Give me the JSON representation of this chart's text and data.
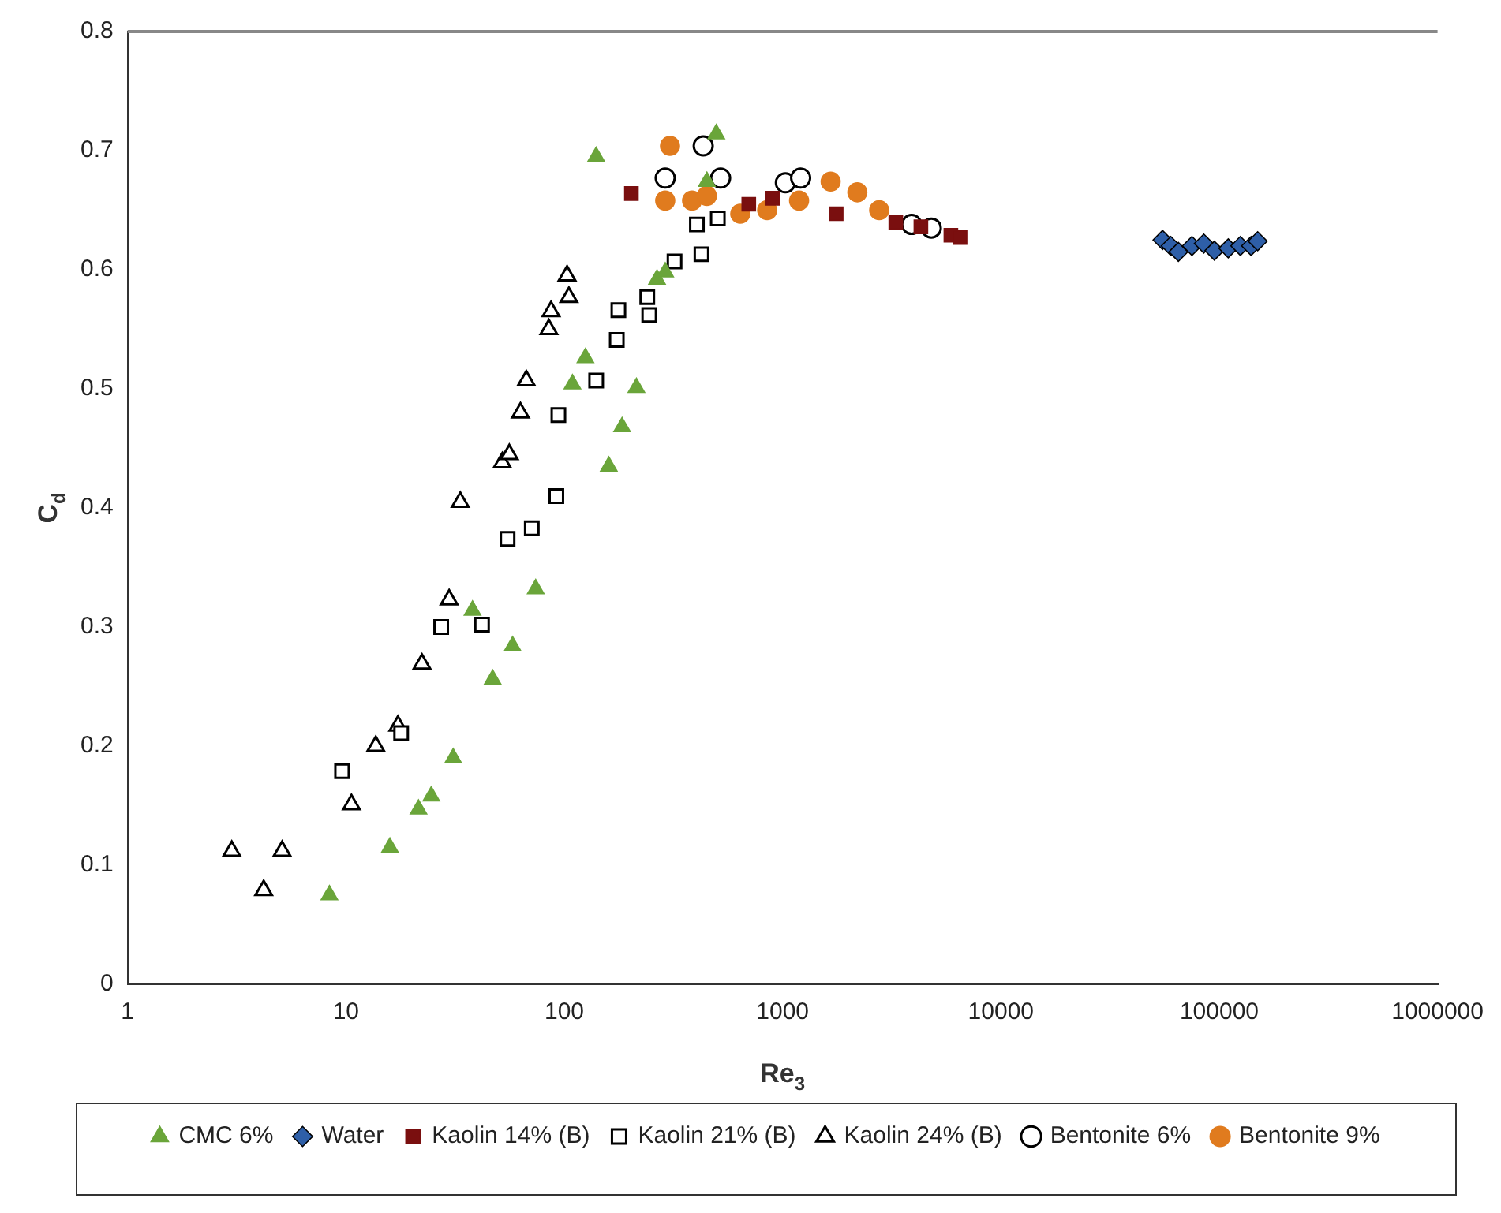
{
  "chart_data": {
    "type": "scatter",
    "xlabel": "Re$_{3}$",
    "ylabel": "C$_{d}$",
    "log": "x",
    "xlim": [
      1,
      1000000
    ],
    "xticks": [
      1,
      10,
      100,
      1000,
      10000,
      100000,
      1000000
    ],
    "ylim": [
      0,
      0.8
    ],
    "yticks": [
      0,
      0.1,
      0.2,
      0.3,
      0.4,
      0.5,
      0.6,
      0.7,
      0.8
    ],
    "grid": false,
    "legend": "bottom",
    "series": [
      {
        "name": "CMC 6%",
        "color": "#6aa53a",
        "marker": "triangle",
        "x": [
          8.4,
          15.9,
          21.5,
          24.6,
          31,
          38,
          47,
          58,
          74,
          109,
          125,
          140,
          160,
          184,
          214,
          266,
          290,
          450,
          497
        ],
        "values": [
          0.075,
          0.115,
          0.147,
          0.158,
          0.19,
          0.314,
          0.256,
          0.284,
          0.332,
          0.504,
          0.526,
          0.695,
          0.435,
          0.468,
          0.501,
          0.592,
          0.598,
          0.674,
          0.714
        ]
      },
      {
        "name": "Water",
        "color": "#2e5fa8",
        "marker": "diamond",
        "x": [
          55000,
          60000,
          65000,
          75000,
          85000,
          95000,
          110000,
          125000,
          140000,
          150000
        ],
        "values": [
          0.625,
          0.62,
          0.615,
          0.62,
          0.622,
          0.616,
          0.618,
          0.62,
          0.62,
          0.624
        ]
      },
      {
        "name": "Kaolin 14% (B)",
        "color": "#7a0f0f",
        "marker": "square",
        "x": [
          203,
          700,
          900,
          1760,
          3300,
          4300,
          5900,
          6500
        ],
        "values": [
          0.664,
          0.655,
          0.66,
          0.647,
          0.64,
          0.636,
          0.629,
          0.627
        ]
      },
      {
        "name": "Kaolin 21% (B)",
        "color": "#000000",
        "marker": "square",
        "x": [
          9.6,
          17.9,
          27.3,
          42,
          55,
          71,
          92,
          94,
          140,
          174,
          177,
          240,
          245,
          320,
          405,
          425,
          505
        ],
        "values": [
          0.179,
          0.211,
          0.3,
          0.302,
          0.374,
          0.383,
          0.41,
          0.478,
          0.507,
          0.541,
          0.566,
          0.577,
          0.562,
          0.607,
          0.638,
          0.613,
          0.643
        ]
      },
      {
        "name": "Kaolin 24% (B)",
        "color": "#000000",
        "marker": "triangle",
        "x": [
          3,
          4.2,
          5.1,
          10.6,
          13.7,
          17.3,
          22.3,
          29.7,
          33.4,
          52,
          56,
          63,
          67,
          85,
          87,
          103,
          105
        ],
        "values": [
          0.112,
          0.079,
          0.112,
          0.151,
          0.2,
          0.217,
          0.269,
          0.323,
          0.405,
          0.438,
          0.445,
          0.48,
          0.507,
          0.55,
          0.565,
          0.595,
          0.577
        ]
      },
      {
        "name": "Bentonite 6%",
        "color": "#000000",
        "marker": "circle",
        "x": [
          290,
          433,
          520,
          1030,
          1210,
          3900,
          4800
        ],
        "values": [
          0.677,
          0.704,
          0.677,
          0.673,
          0.677,
          0.638,
          0.635
        ]
      },
      {
        "name": "Bentonite 9%",
        "color": "#e07b1e",
        "marker": "circle",
        "x": [
          305,
          290,
          385,
          450,
          640,
          850,
          1190,
          1660,
          2200,
          2770
        ],
        "values": [
          0.704,
          0.658,
          0.658,
          0.662,
          0.647,
          0.65,
          0.658,
          0.674,
          0.665,
          0.65
        ]
      }
    ]
  }
}
